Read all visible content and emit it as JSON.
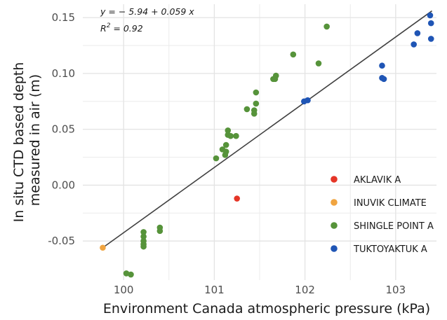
{
  "chart_data": {
    "type": "scatter",
    "xlabel": "Environment Canada atmospheric pressure (kPa)",
    "ylabel_lines": [
      "In situ CTD based depth",
      "measured in air (m)"
    ],
    "xlim": [
      99.55,
      103.45
    ],
    "ylim": [
      -0.085,
      0.162
    ],
    "x_ticks": [
      100,
      101,
      102,
      103
    ],
    "x_tick_labels": [
      "100",
      "101",
      "102",
      "103"
    ],
    "y_ticks": [
      -0.05,
      0.0,
      0.05,
      0.1,
      0.15
    ],
    "y_tick_labels": [
      "-0.05",
      "0.00",
      "0.05",
      "0.10",
      "0.15"
    ],
    "grid": true,
    "regression": {
      "equation_prefix": "y",
      "equation_rhs": " = − 5.94 + 0.059 x",
      "r2_label": "R",
      "r2_sup": "2",
      "r2_value": " = 0.92",
      "x_range": [
        99.77,
        103.4
      ],
      "color": "#404040"
    },
    "legend_position": "bottom-right",
    "series": [
      {
        "name": "AKLAVIK A",
        "color": "#e53527",
        "points": [
          [
            101.25,
            -0.012
          ]
        ]
      },
      {
        "name": "INUVIK CLIMATE",
        "color": "#f0a440",
        "points": [
          [
            99.77,
            -0.056
          ]
        ]
      },
      {
        "name": "SHINGLE POINT A",
        "color": "#56933a",
        "points": [
          [
            100.03,
            -0.079
          ],
          [
            100.08,
            -0.08
          ],
          [
            100.22,
            -0.042
          ],
          [
            100.22,
            -0.046
          ],
          [
            100.22,
            -0.05
          ],
          [
            100.22,
            -0.053
          ],
          [
            100.22,
            -0.055
          ],
          [
            100.4,
            -0.038
          ],
          [
            100.4,
            -0.041
          ],
          [
            101.02,
            0.024
          ],
          [
            101.09,
            0.032
          ],
          [
            101.12,
            0.027
          ],
          [
            101.13,
            0.036
          ],
          [
            101.13,
            0.03
          ],
          [
            101.15,
            0.045
          ],
          [
            101.15,
            0.049
          ],
          [
            101.18,
            0.044
          ],
          [
            101.24,
            0.044
          ],
          [
            101.36,
            0.068
          ],
          [
            101.44,
            0.064
          ],
          [
            101.44,
            0.067
          ],
          [
            101.46,
            0.073
          ],
          [
            101.46,
            0.083
          ],
          [
            101.65,
            0.095
          ],
          [
            101.67,
            0.095
          ],
          [
            101.68,
            0.098
          ],
          [
            101.87,
            0.117
          ],
          [
            102.15,
            0.109
          ],
          [
            102.24,
            0.142
          ]
        ]
      },
      {
        "name": "TUKTOYAKTUK A",
        "color": "#1f55b5",
        "points": [
          [
            101.99,
            0.075
          ],
          [
            102.03,
            0.076
          ],
          [
            102.85,
            0.107
          ],
          [
            102.85,
            0.096
          ],
          [
            102.87,
            0.095
          ],
          [
            103.2,
            0.126
          ],
          [
            103.24,
            0.136
          ],
          [
            103.38,
            0.152
          ],
          [
            103.39,
            0.145
          ],
          [
            103.39,
            0.131
          ]
        ]
      }
    ]
  }
}
